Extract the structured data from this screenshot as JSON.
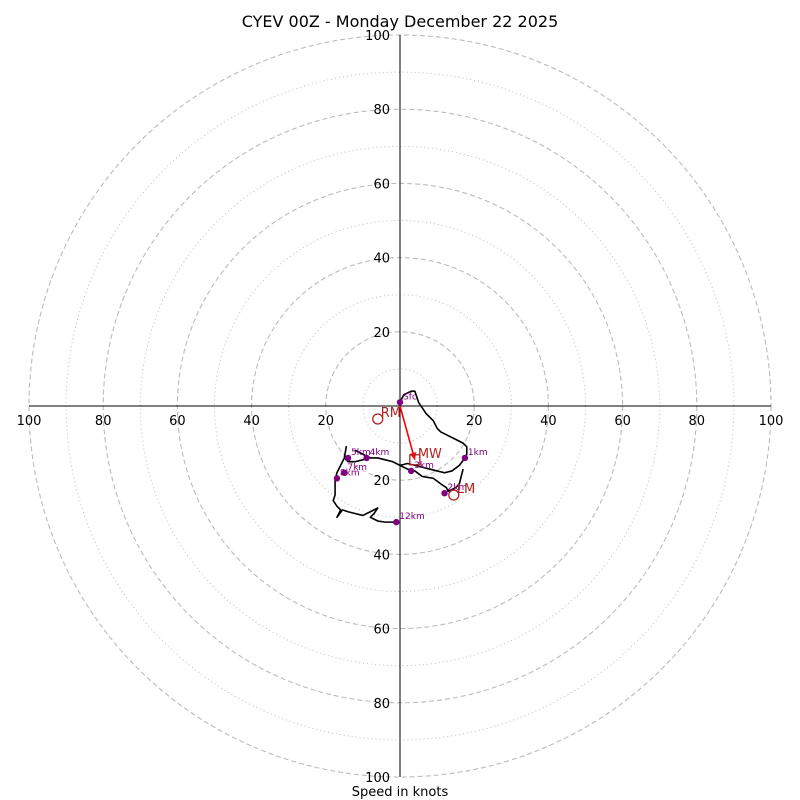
{
  "title": "CYEV 00Z - Monday December 22 2025",
  "xlabel": "Speed in knots",
  "chart_data": {
    "type": "hodograph",
    "xlim": [
      -100,
      100
    ],
    "ylim": [
      -100,
      100
    ],
    "axes_ticks": [
      100,
      80,
      60,
      40,
      20,
      20,
      40,
      60,
      80,
      100
    ],
    "rings_dashed": [
      20,
      40,
      60,
      80,
      100
    ],
    "rings_dotted": [
      10,
      30,
      50,
      70,
      90
    ],
    "colors": {
      "trace": "#000000",
      "height_marker": "#800080",
      "motion_marker": "#b22222",
      "mean_wind_arrow": "#ff0000",
      "rings": "#bbbbbb"
    },
    "trace": [
      [
        0,
        1
      ],
      [
        1,
        3
      ],
      [
        3,
        4
      ],
      [
        4,
        4
      ],
      [
        5,
        1
      ],
      [
        7,
        -2
      ],
      [
        9,
        -4
      ],
      [
        10,
        -6
      ],
      [
        11,
        -7
      ],
      [
        13,
        -8
      ],
      [
        15,
        -9
      ],
      [
        17,
        -10
      ],
      [
        18,
        -11
      ],
      [
        18,
        -13
      ],
      [
        17.5,
        -14
      ],
      [
        16,
        -16
      ],
      [
        14,
        -17.5
      ],
      [
        12,
        -18
      ],
      [
        10,
        -17.5
      ],
      [
        8,
        -17
      ],
      [
        6,
        -16.5
      ],
      [
        4,
        -16
      ],
      [
        2,
        -15.5
      ],
      [
        0,
        -16
      ],
      [
        -2,
        -15
      ],
      [
        -4,
        -14.5
      ],
      [
        -6,
        -14
      ],
      [
        -8,
        -14
      ],
      [
        -10,
        -13
      ],
      [
        -12,
        -12
      ],
      [
        -10,
        -13
      ],
      [
        -8.5,
        -14
      ],
      [
        -10,
        -14.5
      ],
      [
        -12,
        -15
      ],
      [
        -14,
        -15
      ],
      [
        -15,
        -14
      ],
      [
        -14.5,
        -11
      ],
      [
        -15,
        -14
      ],
      [
        -16,
        -16
      ],
      [
        -17,
        -18
      ],
      [
        -17.5,
        -20
      ],
      [
        -17.5,
        -22
      ],
      [
        -17.5,
        -24
      ],
      [
        -18,
        -25.5
      ],
      [
        -17,
        -27
      ],
      [
        -16,
        -28
      ],
      [
        -17,
        -30
      ],
      [
        -15.5,
        -28
      ],
      [
        -14,
        -28.5
      ],
      [
        -12,
        -29
      ],
      [
        -10,
        -29.5
      ],
      [
        -8,
        -28.5
      ],
      [
        -6,
        -27.5
      ],
      [
        -7,
        -29
      ],
      [
        -8,
        -30
      ],
      [
        -6,
        -31
      ],
      [
        -4,
        -31.3
      ],
      [
        -1,
        -31.3
      ]
    ],
    "trace_mid": [
      [
        0,
        -16
      ],
      [
        2,
        -17
      ],
      [
        4,
        -17.5
      ],
      [
        6,
        -19
      ],
      [
        9,
        -19.5
      ],
      [
        11,
        -21
      ],
      [
        12.5,
        -22
      ],
      [
        13,
        -23
      ],
      [
        14,
        -22.5
      ],
      [
        15,
        -22
      ],
      [
        16,
        -21
      ],
      [
        16.5,
        -19
      ],
      [
        17,
        -17
      ]
    ],
    "height_markers": [
      {
        "label": "Sfc",
        "u": 0,
        "v": 1
      },
      {
        "label": "1km",
        "u": 17.5,
        "v": -14
      },
      {
        "label": "2km",
        "u": 12,
        "v": -23.5
      },
      {
        "label": "3km",
        "u": 3,
        "v": -17.5
      },
      {
        "label": "4km",
        "u": -9,
        "v": -14
      },
      {
        "label": "5km",
        "u": -14,
        "v": -14
      },
      {
        "label": "7km",
        "u": -15,
        "v": -18
      },
      {
        "label": "8km",
        "u": -17,
        "v": -19.5
      },
      {
        "label": "12km",
        "u": -1,
        "v": -31.3
      }
    ],
    "motion_markers": [
      {
        "label": "RM",
        "u": -6,
        "v": -3.5,
        "shape": "circle"
      },
      {
        "label": "LM",
        "u": 14.5,
        "v": -24,
        "shape": "circle"
      },
      {
        "label": "MW",
        "u": 4,
        "v": -14.5,
        "shape": "square"
      }
    ],
    "mean_wind_arrow": {
      "from": [
        0,
        0
      ],
      "to": [
        4,
        -14.5
      ]
    }
  }
}
